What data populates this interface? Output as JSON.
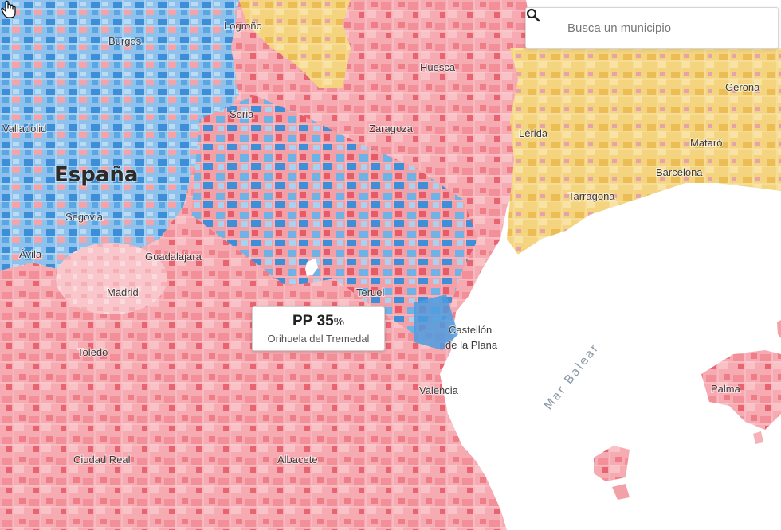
{
  "colors": {
    "pp_light": "#f7b7bd",
    "pp_mid": "#f08a93",
    "pp_dark": "#e04553",
    "psoe_light": "#a7cfee",
    "psoe_mid": "#5fa9e3",
    "psoe_dark": "#2f86d4",
    "cat_light": "#f6dc8c",
    "cat_dark": "#eab94a",
    "cat_pink": "#e9a4ad",
    "sea": "#ffffff"
  },
  "search": {
    "placeholder": "Busca un municipio",
    "icon": "search-icon"
  },
  "tooltip": {
    "party": "PP",
    "value": "35",
    "unit": "%",
    "municipality": "Orihuela del Tremedal"
  },
  "labels": {
    "country": "España",
    "sea": "Mar Balear",
    "cities": [
      "Burgos",
      "Logroño",
      "Huesca",
      "Gerona",
      "Soria",
      "Zaragoza",
      "Valladolid",
      "Lérida",
      "Mataró",
      "Barcelona",
      "Tarragona",
      "Segovia",
      "Ávila",
      "Guadalajara",
      "Madrid",
      "Teruel",
      "Castellón",
      "de la Plana",
      "Toledo",
      "Valencia",
      "Palma",
      "Ciudad Real",
      "Albacete"
    ]
  },
  "cursor": {
    "icon": "hand-pointer-icon"
  }
}
